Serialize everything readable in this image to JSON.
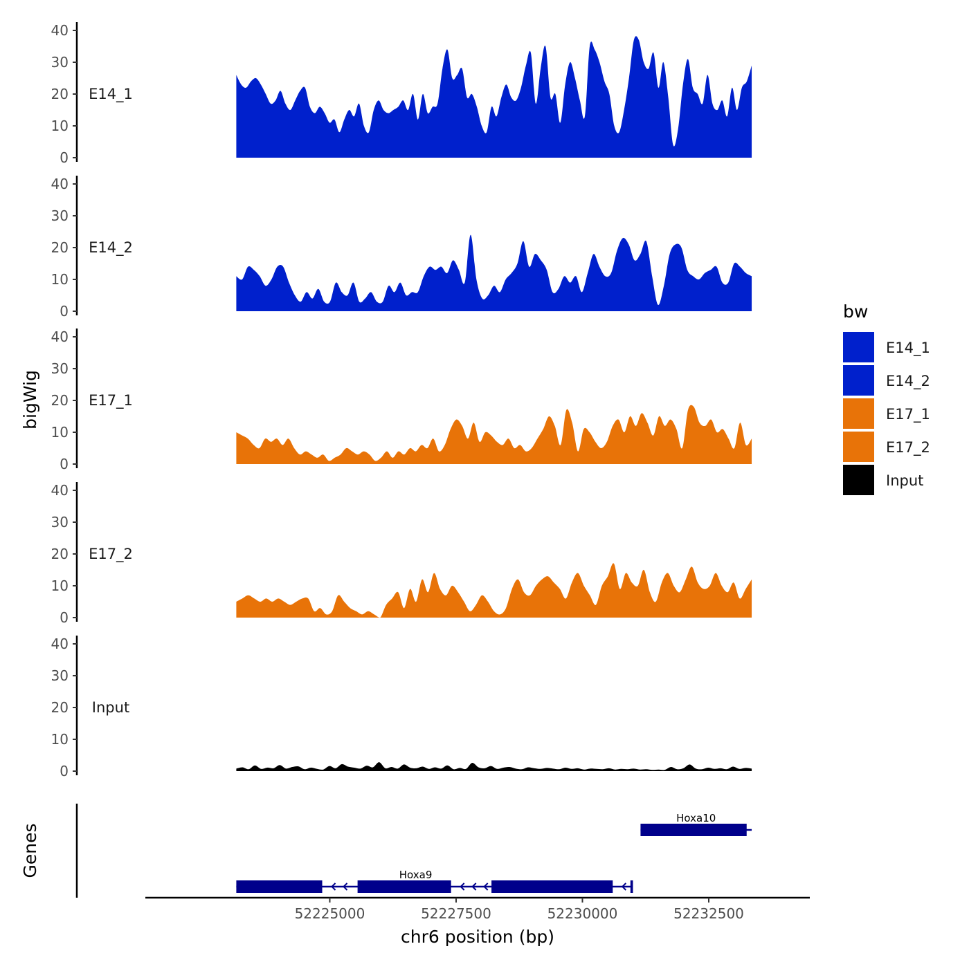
{
  "chart_data": {
    "type": "area",
    "chromosome": "chr6",
    "xlabel": "chr6 position (bp)",
    "ylabel": "bigWig",
    "genes_label": "Genes",
    "xlim": [
      52221350,
      52234500
    ],
    "region": [
      52223150,
      52233350
    ],
    "ylim": [
      0,
      42
    ],
    "x_ticks": [
      52225000,
      52227500,
      52230000,
      52232500
    ],
    "y_ticks": [
      0,
      10,
      20,
      30,
      40
    ],
    "legend": {
      "title": "bw",
      "entries": [
        {
          "label": "E14_1",
          "color": "#0020CC"
        },
        {
          "label": "E14_2",
          "color": "#0020CC"
        },
        {
          "label": "E17_1",
          "color": "#E87308"
        },
        {
          "label": "E17_2",
          "color": "#E87308"
        },
        {
          "label": "Input",
          "color": "#000000"
        }
      ]
    },
    "tracks": [
      {
        "name": "E14_1",
        "color": "#0020CC",
        "values": [
          26,
          23,
          22,
          24,
          25,
          23,
          20,
          17,
          18,
          21,
          17,
          15,
          18,
          21,
          22,
          16,
          14,
          16,
          14,
          11,
          12,
          8,
          12,
          15,
          13,
          17,
          10,
          8,
          15,
          18,
          15,
          14,
          15,
          16,
          18,
          15,
          20,
          12,
          20,
          14,
          16,
          17,
          28,
          34,
          25,
          26,
          28,
          19,
          20,
          16,
          10,
          8,
          16,
          13,
          19,
          23,
          19,
          18,
          22,
          29,
          33,
          17,
          28,
          35,
          19,
          20,
          11,
          23,
          30,
          25,
          18,
          13,
          35,
          34,
          30,
          24,
          20,
          10,
          8,
          15,
          25,
          37,
          37,
          30,
          28,
          33,
          22,
          30,
          19,
          4,
          9,
          23,
          31,
          22,
          20,
          17,
          26,
          17,
          15,
          18,
          13,
          22,
          15,
          22,
          24,
          29
        ]
      },
      {
        "name": "E14_2",
        "color": "#0020CC",
        "values": [
          11,
          10,
          14,
          13,
          11,
          8,
          10,
          14,
          14,
          9,
          5,
          3,
          6,
          4,
          7,
          3,
          3,
          9,
          6,
          5,
          9,
          3,
          4,
          6,
          3,
          3,
          8,
          6,
          9,
          5,
          6,
          6,
          11,
          14,
          13,
          14,
          12,
          16,
          13,
          9,
          24,
          10,
          4,
          5,
          8,
          6,
          10,
          12,
          15,
          22,
          14,
          18,
          16,
          13,
          6,
          7,
          11,
          9,
          11,
          6,
          12,
          18,
          14,
          11,
          12,
          19,
          23,
          21,
          16,
          18,
          22,
          11,
          2,
          8,
          18,
          21,
          20,
          13,
          11,
          10,
          12,
          13,
          14,
          9,
          9,
          15,
          14,
          12,
          11
        ]
      },
      {
        "name": "E17_1",
        "color": "#E87308",
        "values": [
          10,
          9,
          8,
          6,
          5,
          8,
          7,
          8,
          6,
          8,
          5,
          3,
          4,
          3,
          2,
          3,
          1,
          2,
          3,
          5,
          4,
          3,
          4,
          3,
          1,
          2,
          4,
          2,
          4,
          3,
          5,
          4,
          6,
          5,
          8,
          4,
          6,
          11,
          14,
          12,
          8,
          13,
          7,
          10,
          9,
          7,
          6,
          8,
          5,
          6,
          4,
          5,
          8,
          11,
          15,
          12,
          6,
          17,
          13,
          4,
          11,
          10,
          7,
          5,
          7,
          12,
          14,
          10,
          15,
          12,
          16,
          13,
          9,
          15,
          12,
          14,
          11,
          5,
          17,
          18,
          13,
          12,
          14,
          10,
          11,
          8,
          5,
          13,
          6,
          8
        ]
      },
      {
        "name": "E17_2",
        "color": "#E87308",
        "values": [
          5,
          6,
          7,
          6,
          5,
          6,
          5,
          6,
          5,
          4,
          5,
          6,
          6,
          2,
          3,
          1,
          2,
          7,
          5,
          3,
          2,
          1,
          2,
          1,
          0,
          4,
          6,
          8,
          3,
          9,
          5,
          12,
          8,
          14,
          9,
          7,
          10,
          8,
          5,
          2,
          4,
          7,
          5,
          2,
          1,
          3,
          9,
          12,
          8,
          7,
          10,
          12,
          13,
          11,
          9,
          6,
          11,
          14,
          10,
          7,
          4,
          10,
          13,
          17,
          9,
          14,
          11,
          10,
          15,
          8,
          5,
          11,
          14,
          10,
          8,
          12,
          16,
          11,
          9,
          10,
          14,
          10,
          8,
          11,
          6,
          9,
          12
        ]
      },
      {
        "name": "Input",
        "color": "#000000",
        "values": [
          0.8,
          1.2,
          0.6,
          1.8,
          0.7,
          1.1,
          0.9,
          1.9,
          0.8,
          1.3,
          1.5,
          0.6,
          1.1,
          0.7,
          0.5,
          1.6,
          0.9,
          2.2,
          1.4,
          1.1,
          0.8,
          1.7,
          1.2,
          2.8,
          0.9,
          1.3,
          0.8,
          2.1,
          1.1,
          0.9,
          1.4,
          0.7,
          1.2,
          0.8,
          1.8,
          0.6,
          1.0,
          0.7,
          2.6,
          1.2,
          0.9,
          1.6,
          0.7,
          1.1,
          1.3,
          0.8,
          0.6,
          1.2,
          0.9,
          0.7,
          1.0,
          0.8,
          0.6,
          1.1,
          0.7,
          0.9,
          0.5,
          0.8,
          0.7,
          0.6,
          0.9,
          0.5,
          0.7,
          0.6,
          0.8,
          0.5,
          0.6,
          0.4,
          0.5,
          0.4,
          1.3,
          0.6,
          0.9,
          2.1,
          0.8,
          0.6,
          1.1,
          0.7,
          0.9,
          0.6,
          1.4,
          0.7,
          1.0,
          0.8
        ]
      }
    ],
    "genes": [
      {
        "name": "Hoxa10",
        "row": 1,
        "start": 52231150,
        "end": 52233350,
        "strand": "-",
        "exons": [
          [
            52231150,
            52233250
          ]
        ]
      },
      {
        "name": "Hoxa9",
        "row": 2,
        "start": 52223150,
        "end": 52231000,
        "strand": "-",
        "exons": [
          [
            52223150,
            52224850
          ],
          [
            52225550,
            52227400
          ],
          [
            52228200,
            52230600
          ],
          [
            52230950,
            52231000
          ]
        ]
      }
    ]
  }
}
